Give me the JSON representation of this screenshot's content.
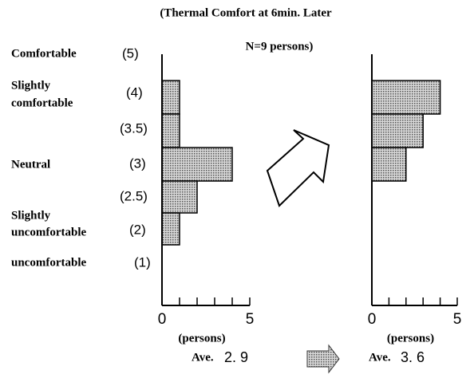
{
  "chart_data": [
    {
      "type": "bar",
      "categories": [
        "(5)",
        "(4)",
        "(3.5)",
        "(3)",
        "(2.5)",
        "(2)",
        "(1)"
      ],
      "category_labels": [
        [
          "Comfortable"
        ],
        [
          "Slightly",
          "comfortable"
        ],
        null,
        [
          "Neutral"
        ],
        null,
        [
          "Slightly",
          "uncomfortable"
        ],
        [
          "uncomfortable"
        ]
      ],
      "values": [
        0,
        1,
        1,
        4,
        2,
        1,
        0
      ],
      "color": "#a8a8a8",
      "xlim": [
        0,
        5
      ],
      "xticks": [
        0,
        5
      ],
      "xminor": [
        1,
        2,
        3,
        4
      ],
      "xlabel": "(persons)",
      "average_prefix": "Ave.",
      "average": 2.9,
      "average_label": "2. 9"
    },
    {
      "type": "bar",
      "title": [
        "(Thermal Comfort at 6min. Later",
        "N=9 persons)"
      ],
      "values": [
        0,
        4,
        3,
        2,
        0,
        0,
        0
      ],
      "color": "#a8a8a8",
      "xlim": [
        0,
        5
      ],
      "xticks": [
        0,
        5
      ],
      "xminor": [
        1,
        2,
        3,
        4
      ],
      "xlabel": "(persons)",
      "average_prefix": "Ave.",
      "average": 3.6,
      "average_label": "3. 6"
    }
  ]
}
